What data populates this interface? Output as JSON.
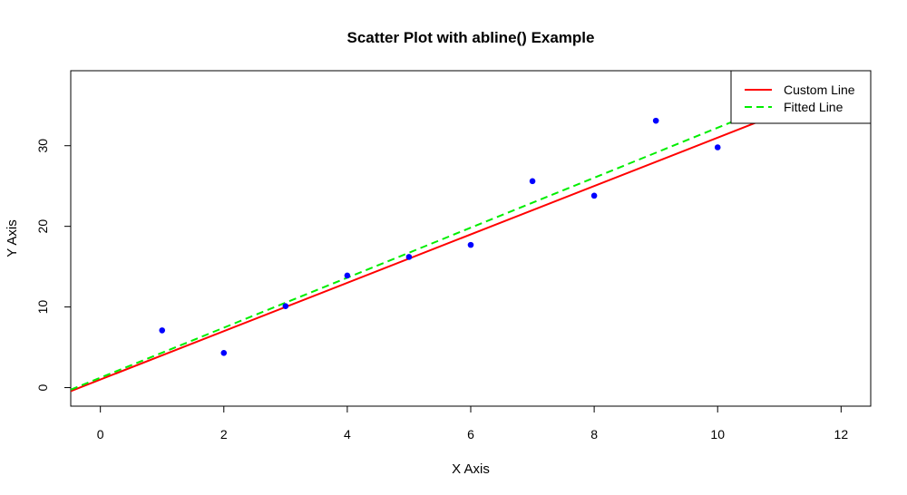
{
  "chart_data": {
    "type": "scatter",
    "title": "Scatter Plot with abline() Example",
    "xlabel": "X Axis",
    "ylabel": "Y Axis",
    "xlim": [
      -0.48,
      12.48
    ],
    "ylim": [
      -2.3,
      39.3
    ],
    "xticks": [
      0,
      2,
      4,
      6,
      8,
      10,
      12
    ],
    "yticks": [
      0,
      10,
      20,
      30
    ],
    "grid": false,
    "legend_position": "top-right",
    "point_color": "#0000ff",
    "series": [
      {
        "kind": "points",
        "x": [
          1,
          2,
          3,
          4,
          5,
          6,
          7,
          8,
          9,
          10
        ],
        "y": [
          7.1,
          4.3,
          10.1,
          13.9,
          16.2,
          17.7,
          25.6,
          23.8,
          33.1,
          29.8
        ]
      }
    ],
    "lines": [
      {
        "name": "Custom Line",
        "intercept": 1,
        "slope": 3,
        "color": "#ff0000",
        "dash": "solid"
      },
      {
        "name": "Fitted Line",
        "intercept": 1.23,
        "slope": 3.1,
        "color": "#00ee00",
        "dash": "dashed"
      }
    ],
    "legend": [
      {
        "label": "Custom Line",
        "color": "#ff0000",
        "dash": "solid"
      },
      {
        "label": "Fitted Line",
        "color": "#00ee00",
        "dash": "dashed"
      }
    ]
  }
}
